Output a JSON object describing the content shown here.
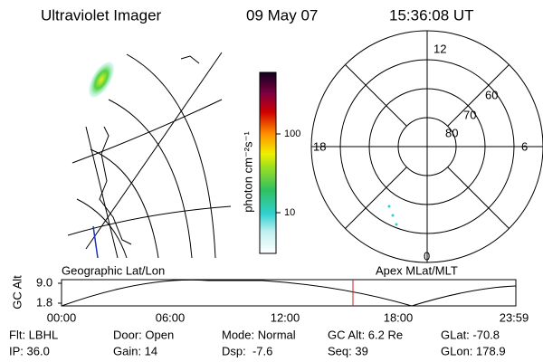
{
  "header": {
    "title": "Ultraviolet Imager",
    "date": "09 May 07",
    "time": "15:36:08 UT"
  },
  "colorbar": {
    "label": "photon cm⁻²s⁻¹",
    "ticks": [
      "100",
      "10"
    ]
  },
  "polar": {
    "mlt_labels": [
      "12",
      "18",
      "6",
      "0"
    ],
    "mlat_labels": [
      "60",
      "70",
      "80"
    ]
  },
  "captions": {
    "left": "Geographic Lat/Lon",
    "right": "Apex MLat/MLT"
  },
  "timeline": {
    "ylabel": "GC Alt",
    "yticks": [
      "9.0",
      "1.8"
    ],
    "xticks": [
      "00:00",
      "06:00",
      "12:00",
      "18:00",
      "23:59"
    ]
  },
  "status": {
    "rows": [
      [
        "Flt: LBHL",
        "Door: Open",
        "Mode: Normal",
        "GC Alt: 6.2 Re",
        "GLat: -70.8"
      ],
      [
        "IP: 36.0",
        "Gain: 14",
        "Dsp:  -7.6",
        "Seq: 39",
        "GLon: 178.9"
      ]
    ]
  }
}
